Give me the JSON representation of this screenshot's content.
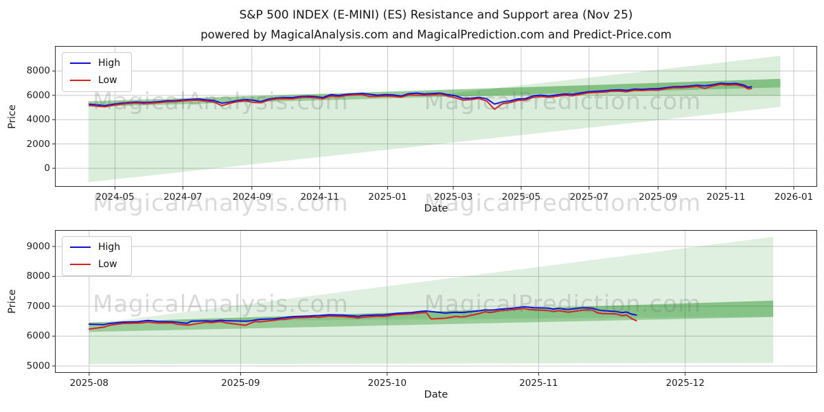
{
  "title": "S&P 500 INDEX (E-MINI) (ES) Resistance and Support area (Nov 25)",
  "subtitle": "powered by MagicalAnalysis.com and MagicalPrediction.com and Predict-Price.com",
  "watermark": {
    "left": "MagicalAnalysis.com",
    "right": "MagicalPrediction.com"
  },
  "legend": {
    "high": "High",
    "low": "Low"
  },
  "colors": {
    "high": "#0d0ddc",
    "low": "#d62020",
    "band": "#008000",
    "grid": "#c9c9c9",
    "spine": "#2b2b2b",
    "text": "#1c1c1c"
  },
  "chart_data": [
    {
      "type": "line",
      "name": "full-history",
      "xlabel": "Date",
      "ylabel": "Price",
      "grid": true,
      "legend_position": "upper left",
      "legend_entries": [
        "High",
        "Low"
      ],
      "x_range": [
        "2024-03-08",
        "2026-01-22"
      ],
      "y_range": [
        -1520,
        10055
      ],
      "y_ticks": [
        0,
        2000,
        4000,
        6000,
        8000
      ],
      "x_ticks": [
        {
          "date": "2024-05-01",
          "label": "2024-05"
        },
        {
          "date": "2024-07-01",
          "label": "2024-07"
        },
        {
          "date": "2024-09-01",
          "label": "2024-09"
        },
        {
          "date": "2024-11-01",
          "label": "2024-11"
        },
        {
          "date": "2025-01-01",
          "label": "2025-01"
        },
        {
          "date": "2025-03-01",
          "label": "2025-03"
        },
        {
          "date": "2025-05-01",
          "label": "2025-05"
        },
        {
          "date": "2025-07-01",
          "label": "2025-07"
        },
        {
          "date": "2025-09-01",
          "label": "2025-09"
        },
        {
          "date": "2025-11-01",
          "label": "2025-11"
        },
        {
          "date": "2026-01-01",
          "label": "2026-01"
        }
      ],
      "bands": [
        {
          "name": "support-area-wide",
          "opacity": 0.14,
          "points": [
            [
              "2024-04-07",
              5450
            ],
            [
              "2024-04-07",
              -1150
            ],
            [
              "2025-12-20",
              5050
            ],
            [
              "2025-12-20",
              7350
            ]
          ]
        },
        {
          "name": "resistance-fan",
          "opacity": 0.14,
          "points": [
            [
              "2025-02-06",
              5950
            ],
            [
              "2025-12-20",
              9250
            ],
            [
              "2025-12-20",
              5950
            ]
          ]
        },
        {
          "name": "support-band",
          "opacity": 0.3,
          "points": [
            [
              "2024-04-07",
              5520
            ],
            [
              "2025-12-20",
              7350
            ],
            [
              "2025-12-20",
              6650
            ],
            [
              "2024-04-07",
              5060
            ]
          ]
        }
      ],
      "dates": [
        "2024-04-08",
        "2024-04-15",
        "2024-04-22",
        "2024-04-29",
        "2024-05-06",
        "2024-05-13",
        "2024-05-20",
        "2024-05-27",
        "2024-06-03",
        "2024-06-10",
        "2024-06-17",
        "2024-06-24",
        "2024-07-01",
        "2024-07-08",
        "2024-07-15",
        "2024-07-22",
        "2024-07-29",
        "2024-08-05",
        "2024-08-12",
        "2024-08-19",
        "2024-08-26",
        "2024-09-02",
        "2024-09-09",
        "2024-09-16",
        "2024-09-23",
        "2024-09-30",
        "2024-10-07",
        "2024-10-14",
        "2024-10-21",
        "2024-10-28",
        "2024-11-04",
        "2024-11-11",
        "2024-11-18",
        "2024-11-25",
        "2024-12-02",
        "2024-12-09",
        "2024-12-16",
        "2024-12-23",
        "2024-12-30",
        "2025-01-06",
        "2025-01-13",
        "2025-01-20",
        "2025-01-27",
        "2025-02-03",
        "2025-02-10",
        "2025-02-17",
        "2025-02-24",
        "2025-03-03",
        "2025-03-10",
        "2025-03-17",
        "2025-03-24",
        "2025-03-31",
        "2025-04-07",
        "2025-04-14",
        "2025-04-21",
        "2025-04-28",
        "2025-05-05",
        "2025-05-12",
        "2025-05-19",
        "2025-05-26",
        "2025-06-02",
        "2025-06-09",
        "2025-06-16",
        "2025-06-23",
        "2025-06-30",
        "2025-07-07",
        "2025-07-14",
        "2025-07-21",
        "2025-07-28",
        "2025-08-04",
        "2025-08-11",
        "2025-08-18",
        "2025-08-25",
        "2025-09-01",
        "2025-09-08",
        "2025-09-15",
        "2025-09-22",
        "2025-09-29",
        "2025-10-06",
        "2025-10-13",
        "2025-10-20",
        "2025-10-27",
        "2025-11-03",
        "2025-11-10",
        "2025-11-17",
        "2025-11-21",
        "2025-11-24"
      ],
      "high": [
        5270,
        5210,
        5150,
        5260,
        5340,
        5400,
        5450,
        5410,
        5430,
        5480,
        5550,
        5560,
        5620,
        5670,
        5700,
        5620,
        5570,
        5350,
        5440,
        5570,
        5650,
        5600,
        5480,
        5690,
        5780,
        5820,
        5810,
        5890,
        5920,
        5900,
        5820,
        6060,
        5990,
        6080,
        6120,
        6160,
        6080,
        6000,
        6060,
        6030,
        5940,
        6130,
        6180,
        6110,
        6140,
        6190,
        6060,
        5960,
        5740,
        5760,
        5840,
        5720,
        5280,
        5460,
        5540,
        5700,
        5730,
        5960,
        6010,
        5950,
        6030,
        6110,
        6080,
        6190,
        6290,
        6330,
        6360,
        6430,
        6450,
        6410,
        6510,
        6490,
        6530,
        6550,
        6630,
        6700,
        6720,
        6760,
        6820,
        6780,
        6860,
        6990,
        6950,
        6980,
        6840,
        6660,
        6700
      ],
      "low": [
        5180,
        5100,
        5060,
        5170,
        5260,
        5330,
        5370,
        5320,
        5350,
        5400,
        5470,
        5480,
        5540,
        5590,
        5600,
        5510,
        5440,
        5150,
        5340,
        5480,
        5560,
        5420,
        5390,
        5600,
        5700,
        5720,
        5710,
        5810,
        5840,
        5800,
        5720,
        5940,
        5880,
        5990,
        6040,
        6060,
        5900,
        5910,
        5950,
        5920,
        5850,
        6030,
        6020,
        6000,
        6040,
        6090,
        5940,
        5800,
        5600,
        5650,
        5740,
        5540,
        4850,
        5300,
        5400,
        5580,
        5620,
        5840,
        5900,
        5840,
        5920,
        6010,
        5960,
        6080,
        6200,
        6240,
        6260,
        6340,
        6350,
        6290,
        6420,
        6390,
        6440,
        6420,
        6540,
        6620,
        6630,
        6670,
        6740,
        6570,
        6760,
        6900,
        6840,
        6870,
        6730,
        6520,
        6560
      ]
    },
    {
      "type": "line",
      "name": "recent-zoom",
      "xlabel": "Date",
      "ylabel": "Price",
      "grid": true,
      "legend_position": "upper left",
      "legend_entries": [
        "High",
        "Low"
      ],
      "x_range": [
        "2025-07-25",
        "2025-12-28"
      ],
      "y_range": [
        4770,
        9550
      ],
      "y_ticks": [
        5000,
        6000,
        7000,
        8000,
        9000
      ],
      "x_ticks": [
        {
          "date": "2025-08-01",
          "label": "2025-08"
        },
        {
          "date": "2025-09-01",
          "label": "2025-09"
        },
        {
          "date": "2025-10-01",
          "label": "2025-10"
        },
        {
          "date": "2025-11-01",
          "label": "2025-11"
        },
        {
          "date": "2025-12-01",
          "label": "2025-12"
        }
      ],
      "bands": [
        {
          "name": "support-area-wide",
          "opacity": 0.14,
          "points": [
            [
              "2025-08-01",
              6460
            ],
            [
              "2025-12-19",
              7190
            ],
            [
              "2025-12-19",
              5100
            ],
            [
              "2025-08-01",
              5060
            ]
          ]
        },
        {
          "name": "resistance-fan",
          "opacity": 0.12,
          "points": [
            [
              "2025-08-05",
              6480
            ],
            [
              "2025-12-19",
              9320
            ],
            [
              "2025-12-19",
              6650
            ]
          ]
        },
        {
          "name": "support-band",
          "opacity": 0.3,
          "points": [
            [
              "2025-08-01",
              6460
            ],
            [
              "2025-12-19",
              7190
            ],
            [
              "2025-12-19",
              6640
            ],
            [
              "2025-08-01",
              6140
            ]
          ]
        }
      ],
      "dates": [
        "2025-08-01",
        "2025-08-04",
        "2025-08-05",
        "2025-08-06",
        "2025-08-07",
        "2025-08-08",
        "2025-08-11",
        "2025-08-12",
        "2025-08-13",
        "2025-08-14",
        "2025-08-15",
        "2025-08-18",
        "2025-08-19",
        "2025-08-20",
        "2025-08-21",
        "2025-08-22",
        "2025-08-25",
        "2025-08-26",
        "2025-08-27",
        "2025-08-28",
        "2025-08-29",
        "2025-09-02",
        "2025-09-03",
        "2025-09-04",
        "2025-09-05",
        "2025-09-08",
        "2025-09-09",
        "2025-09-10",
        "2025-09-11",
        "2025-09-12",
        "2025-09-15",
        "2025-09-16",
        "2025-09-17",
        "2025-09-18",
        "2025-09-19",
        "2025-09-22",
        "2025-09-23",
        "2025-09-24",
        "2025-09-25",
        "2025-09-26",
        "2025-09-29",
        "2025-09-30",
        "2025-10-01",
        "2025-10-02",
        "2025-10-03",
        "2025-10-06",
        "2025-10-07",
        "2025-10-08",
        "2025-10-09",
        "2025-10-10",
        "2025-10-13",
        "2025-10-14",
        "2025-10-15",
        "2025-10-16",
        "2025-10-17",
        "2025-10-20",
        "2025-10-21",
        "2025-10-22",
        "2025-10-23",
        "2025-10-24",
        "2025-10-27",
        "2025-10-28",
        "2025-10-29",
        "2025-10-30",
        "2025-10-31",
        "2025-11-03",
        "2025-11-04",
        "2025-11-05",
        "2025-11-06",
        "2025-11-07",
        "2025-11-10",
        "2025-11-11",
        "2025-11-12",
        "2025-11-13",
        "2025-11-14",
        "2025-11-17",
        "2025-11-18",
        "2025-11-19",
        "2025-11-20",
        "2025-11-21"
      ],
      "high": [
        6400,
        6385,
        6420,
        6435,
        6455,
        6470,
        6480,
        6505,
        6520,
        6510,
        6490,
        6480,
        6465,
        6445,
        6430,
        6500,
        6510,
        6500,
        6515,
        6530,
        6515,
        6500,
        6510,
        6540,
        6560,
        6580,
        6600,
        6615,
        6640,
        6655,
        6670,
        6685,
        6690,
        6700,
        6715,
        6705,
        6690,
        6680,
        6660,
        6690,
        6710,
        6705,
        6720,
        6745,
        6765,
        6790,
        6810,
        6830,
        6840,
        6820,
        6770,
        6785,
        6800,
        6790,
        6800,
        6850,
        6880,
        6870,
        6880,
        6900,
        6940,
        6960,
        6985,
        6965,
        6950,
        6940,
        6900,
        6930,
        6910,
        6890,
        6950,
        6945,
        6935,
        6885,
        6855,
        6820,
        6785,
        6805,
        6735,
        6705
      ],
      "low": [
        6235,
        6300,
        6355,
        6380,
        6405,
        6425,
        6435,
        6445,
        6470,
        6455,
        6435,
        6440,
        6400,
        6385,
        6370,
        6385,
        6465,
        6450,
        6470,
        6485,
        6445,
        6360,
        6430,
        6490,
        6480,
        6530,
        6555,
        6555,
        6585,
        6610,
        6625,
        6640,
        6630,
        6650,
        6670,
        6655,
        6640,
        6630,
        6605,
        6630,
        6665,
        6660,
        6665,
        6700,
        6720,
        6745,
        6760,
        6780,
        6790,
        6575,
        6600,
        6630,
        6660,
        6640,
        6650,
        6760,
        6815,
        6790,
        6810,
        6850,
        6890,
        6905,
        6930,
        6890,
        6880,
        6855,
        6820,
        6850,
        6830,
        6800,
        6865,
        6885,
        6870,
        6780,
        6755,
        6740,
        6685,
        6705,
        6590,
        6515
      ]
    }
  ]
}
